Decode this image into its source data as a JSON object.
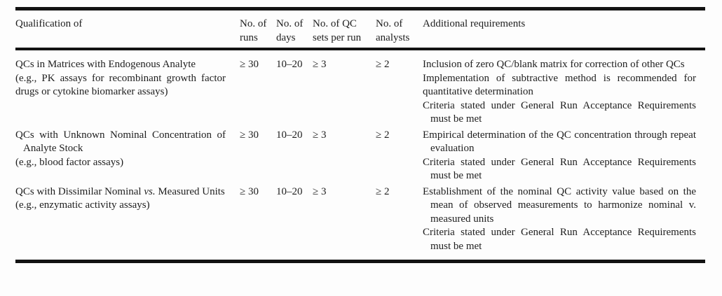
{
  "page": {
    "background": "#fdfdfd",
    "text_color": "#1e1e1e",
    "rule_color": "#131313"
  },
  "table": {
    "columns": [
      {
        "id": "qualification",
        "label": "Qualification of"
      },
      {
        "id": "runs",
        "label": "No. of runs"
      },
      {
        "id": "days",
        "label": "No. of days"
      },
      {
        "id": "qc_sets",
        "label": "No. of QC sets per run"
      },
      {
        "id": "analysts",
        "label": "No. of analysts"
      },
      {
        "id": "additional",
        "label": "Additional requirements"
      }
    ],
    "rows": [
      {
        "qualification": {
          "title_segments": [
            {
              "text": "QCs in Matrices with Endogenous Analyte"
            }
          ],
          "example": "(e.g., PK assays for recombinant growth factor drugs or cytokine biomarker assays)"
        },
        "runs": "≥ 30",
        "days": "10–20",
        "qc_sets": "≥ 3",
        "analysts": "≥ 2",
        "additional": [
          {
            "text": "Inclusion of zero QC/blank matrix for correction of other QCs",
            "hanging_indent": true
          },
          {
            "text": "Implementation of subtractive method is recommended for quantitative determination",
            "hanging_indent": false
          },
          {
            "text": "Criteria stated under General Run Acceptance Requirements must be met",
            "hanging_indent": true
          }
        ]
      },
      {
        "qualification": {
          "title_segments": [
            {
              "text": "QCs with Unknown Nominal Concentration of Analyte Stock"
            }
          ],
          "example": "(e.g., blood factor assays)"
        },
        "runs": "≥ 30",
        "days": "10–20",
        "qc_sets": "≥ 3",
        "analysts": "≥ 2",
        "additional": [
          {
            "text": "Empirical determination of the QC concentration through repeat evaluation",
            "hanging_indent": true
          },
          {
            "text": "Criteria stated under General Run Acceptance Requirements must be met",
            "hanging_indent": true
          }
        ]
      },
      {
        "qualification": {
          "title_segments": [
            {
              "text": "QCs with Dissimilar Nominal "
            },
            {
              "text": "vs.",
              "italic": true
            },
            {
              "text": " Measured Units"
            }
          ],
          "example": "(e.g., enzymatic activity assays)"
        },
        "runs": "≥ 30",
        "days": "10–20",
        "qc_sets": "≥ 3",
        "analysts": "≥ 2",
        "additional": [
          {
            "text": "Establishment of the nominal QC activity value based on the mean of observed measurements to harmonize nominal v. measured units",
            "hanging_indent": true
          },
          {
            "text": "Criteria stated under General Run Acceptance Requirements must be met",
            "hanging_indent": true
          }
        ]
      }
    ]
  }
}
